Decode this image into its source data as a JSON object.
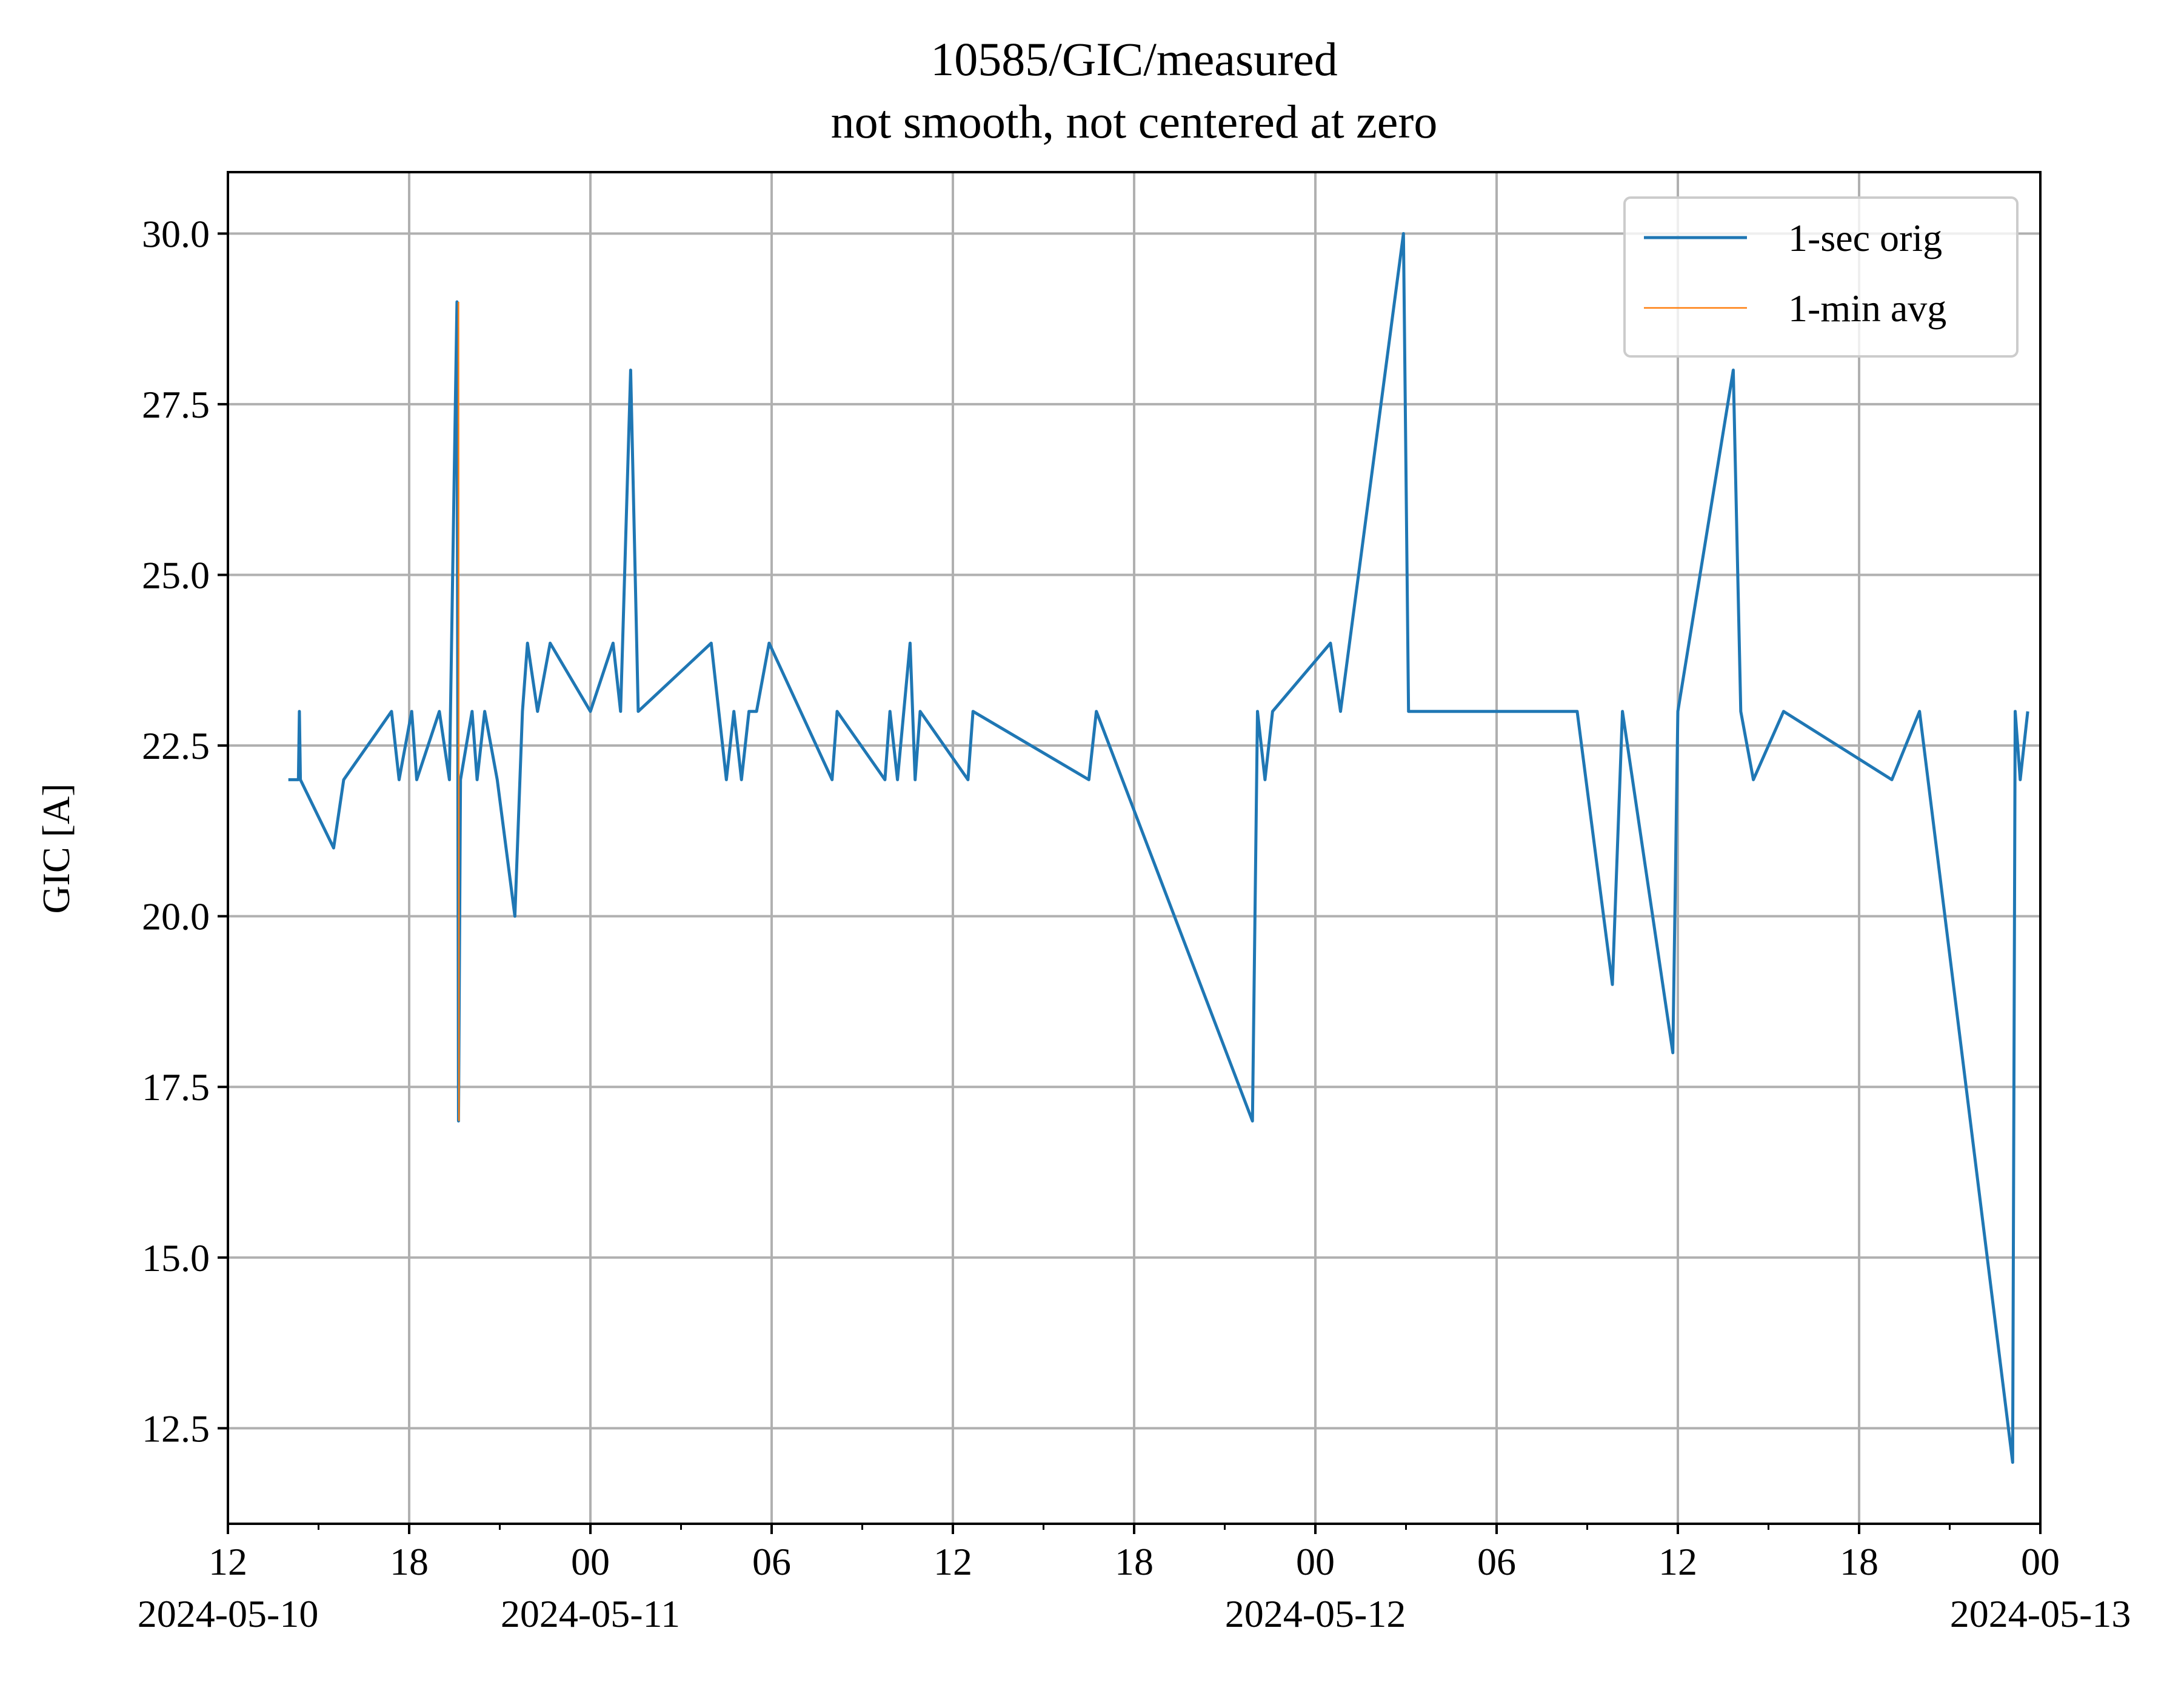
{
  "chart_data": {
    "type": "line",
    "title": "10585/GIC/measured",
    "subtitle": "not smooth, not centered at zero",
    "xlabel": "",
    "ylabel": "GIC [A]",
    "xlim": [
      "2024-05-10 12:00",
      "2024-05-13 00:00"
    ],
    "ylim": [
      11.1,
      30.9
    ],
    "y_ticks": [
      "12.5",
      "15.0",
      "17.5",
      "20.0",
      "22.5",
      "25.0",
      "27.5",
      "30.0"
    ],
    "x_ticks": [
      {
        "t": "2024-05-10 12:00",
        "label": "12",
        "date": "2024-05-10"
      },
      {
        "t": "2024-05-10 18:00",
        "label": "18",
        "date": ""
      },
      {
        "t": "2024-05-11 00:00",
        "label": "00",
        "date": "2024-05-11"
      },
      {
        "t": "2024-05-11 06:00",
        "label": "06",
        "date": ""
      },
      {
        "t": "2024-05-11 12:00",
        "label": "12",
        "date": ""
      },
      {
        "t": "2024-05-11 18:00",
        "label": "18",
        "date": ""
      },
      {
        "t": "2024-05-12 00:00",
        "label": "00",
        "date": "2024-05-12"
      },
      {
        "t": "2024-05-12 06:00",
        "label": "06",
        "date": ""
      },
      {
        "t": "2024-05-12 12:00",
        "label": "12",
        "date": ""
      },
      {
        "t": "2024-05-12 18:00",
        "label": "18",
        "date": ""
      },
      {
        "t": "2024-05-13 00:00",
        "label": "00",
        "date": "2024-05-13"
      }
    ],
    "minor_ticks": [
      "2024-05-10 15:00",
      "2024-05-10 21:00",
      "2024-05-11 03:00",
      "2024-05-11 09:00",
      "2024-05-11 15:00",
      "2024-05-11 21:00",
      "2024-05-12 03:00",
      "2024-05-12 09:00",
      "2024-05-12 15:00",
      "2024-05-12 21:00"
    ],
    "grid": true,
    "legend_position": "upper-right",
    "series": [
      {
        "name": "1-sec orig",
        "color": "#1f77b4",
        "points": [
          [
            "2024-05-10 14:00",
            22
          ],
          [
            "2024-05-10 14:20",
            22
          ],
          [
            "2024-05-10 14:22",
            23
          ],
          [
            "2024-05-10 14:24",
            22
          ],
          [
            "2024-05-10 15:30",
            21
          ],
          [
            "2024-05-10 15:50",
            22
          ],
          [
            "2024-05-10 17:25",
            23
          ],
          [
            "2024-05-10 17:40",
            22
          ],
          [
            "2024-05-10 18:05",
            23
          ],
          [
            "2024-05-10 18:15",
            22
          ],
          [
            "2024-05-10 19:00",
            23
          ],
          [
            "2024-05-10 19:20",
            22
          ],
          [
            "2024-05-10 19:35",
            29
          ],
          [
            "2024-05-10 19:38",
            17
          ],
          [
            "2024-05-10 19:42",
            22
          ],
          [
            "2024-05-10 20:05",
            23
          ],
          [
            "2024-05-10 20:15",
            22
          ],
          [
            "2024-05-10 20:30",
            23
          ],
          [
            "2024-05-10 20:55",
            22
          ],
          [
            "2024-05-10 21:30",
            20
          ],
          [
            "2024-05-10 21:45",
            23
          ],
          [
            "2024-05-10 21:55",
            24
          ],
          [
            "2024-05-10 22:15",
            23
          ],
          [
            "2024-05-10 22:40",
            24
          ],
          [
            "2024-05-11 00:00",
            23
          ],
          [
            "2024-05-11 00:45",
            24
          ],
          [
            "2024-05-11 01:00",
            23
          ],
          [
            "2024-05-11 01:20",
            28
          ],
          [
            "2024-05-11 01:35",
            23
          ],
          [
            "2024-05-11 04:00",
            24
          ],
          [
            "2024-05-11 04:30",
            22
          ],
          [
            "2024-05-11 04:45",
            23
          ],
          [
            "2024-05-11 05:00",
            22
          ],
          [
            "2024-05-11 05:15",
            23
          ],
          [
            "2024-05-11 05:30",
            23
          ],
          [
            "2024-05-11 05:55",
            24
          ],
          [
            "2024-05-11 08:00",
            22
          ],
          [
            "2024-05-11 08:10",
            23
          ],
          [
            "2024-05-11 09:45",
            22
          ],
          [
            "2024-05-11 09:55",
            23
          ],
          [
            "2024-05-11 10:10",
            22
          ],
          [
            "2024-05-11 10:35",
            24
          ],
          [
            "2024-05-11 10:45",
            22
          ],
          [
            "2024-05-11 10:55",
            23
          ],
          [
            "2024-05-11 12:30",
            22
          ],
          [
            "2024-05-11 12:40",
            23
          ],
          [
            "2024-05-11 16:30",
            22
          ],
          [
            "2024-05-11 16:45",
            23
          ],
          [
            "2024-05-11 21:55",
            17
          ],
          [
            "2024-05-11 22:05",
            23
          ],
          [
            "2024-05-11 22:20",
            22
          ],
          [
            "2024-05-11 22:35",
            23
          ],
          [
            "2024-05-12 00:30",
            24
          ],
          [
            "2024-05-12 00:50",
            23
          ],
          [
            "2024-05-12 02:55",
            30
          ],
          [
            "2024-05-12 03:05",
            23
          ],
          [
            "2024-05-12 08:40",
            23
          ],
          [
            "2024-05-12 09:50",
            19
          ],
          [
            "2024-05-12 10:10",
            23
          ],
          [
            "2024-05-12 11:50",
            18
          ],
          [
            "2024-05-12 12:00",
            23
          ],
          [
            "2024-05-12 13:50",
            28
          ],
          [
            "2024-05-12 14:05",
            23
          ],
          [
            "2024-05-12 14:30",
            22
          ],
          [
            "2024-05-12 15:30",
            23
          ],
          [
            "2024-05-12 19:05",
            22
          ],
          [
            "2024-05-12 20:00",
            23
          ],
          [
            "2024-05-12 23:05",
            12
          ],
          [
            "2024-05-12 23:10",
            23
          ],
          [
            "2024-05-12 23:20",
            22
          ],
          [
            "2024-05-12 23:35",
            23
          ]
        ]
      },
      {
        "name": "1-min avg",
        "color": "#ff7f0e",
        "points": [
          [
            "2024-05-10 19:38",
            29
          ],
          [
            "2024-05-10 19:39",
            17
          ]
        ]
      }
    ]
  }
}
